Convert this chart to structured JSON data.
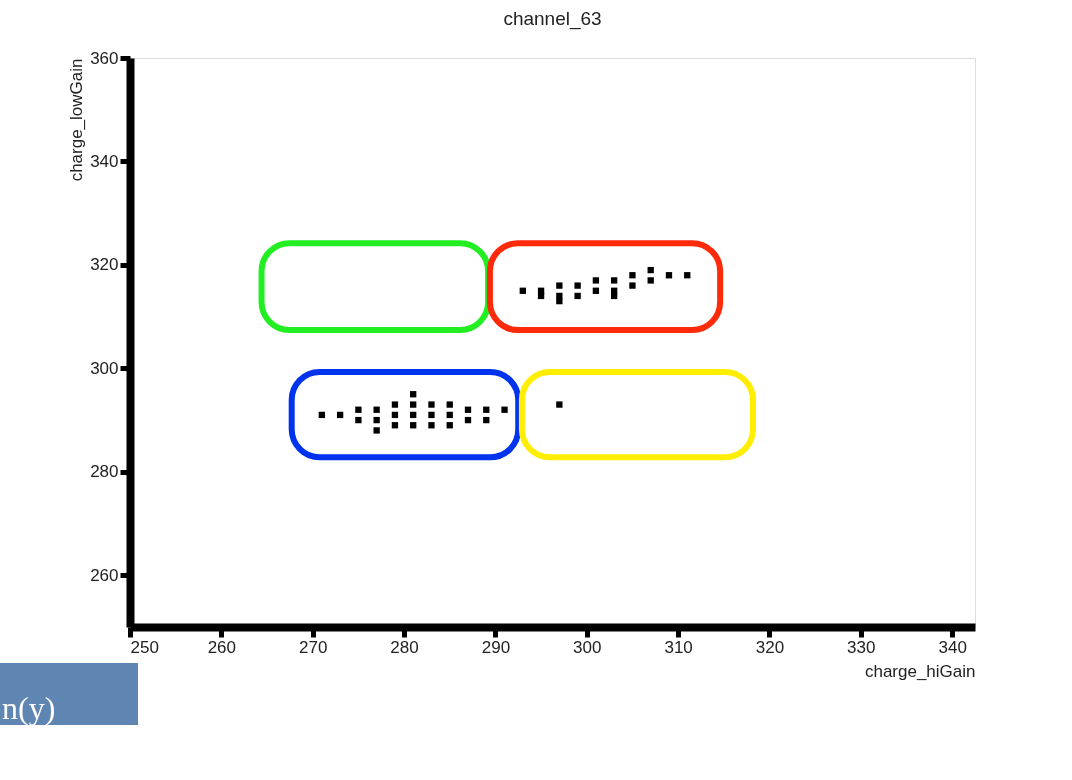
{
  "chart_data": {
    "type": "scatter",
    "title": "channel_63",
    "xlabel": "charge_hiGain",
    "ylabel": "charge_lowGain",
    "xlim": [
      250,
      342.5
    ],
    "ylim": [
      250,
      360
    ],
    "xticks": [
      250,
      260,
      270,
      280,
      290,
      300,
      310,
      320,
      330,
      340
    ],
    "yticks": [
      260,
      280,
      300,
      320,
      340,
      360
    ],
    "grid": false,
    "legend": false,
    "marker": "square",
    "annotations": [
      "n(y)"
    ],
    "series": [
      {
        "color": "#000000",
        "x": [
          271,
          273,
          275,
          275,
          277,
          277,
          277,
          279,
          279,
          279,
          281,
          281,
          281,
          281,
          283,
          283,
          283,
          285,
          285,
          285,
          287,
          287,
          289,
          289,
          291,
          293,
          295,
          295,
          297,
          297,
          299,
          299,
          301,
          301,
          303,
          303,
          305,
          305,
          307,
          307,
          309,
          311,
          297,
          303,
          297
        ],
        "values": [
          291,
          291,
          292,
          290,
          292,
          290,
          288,
          293,
          291,
          289,
          293,
          291,
          289,
          295,
          293,
          291,
          289,
          293,
          291,
          289,
          292,
          290,
          292,
          290,
          292,
          315,
          315,
          314,
          316,
          314,
          316,
          314,
          317,
          315,
          317,
          315,
          318,
          316,
          319,
          317,
          318,
          318,
          313,
          314,
          293
        ]
      }
    ]
  }
}
